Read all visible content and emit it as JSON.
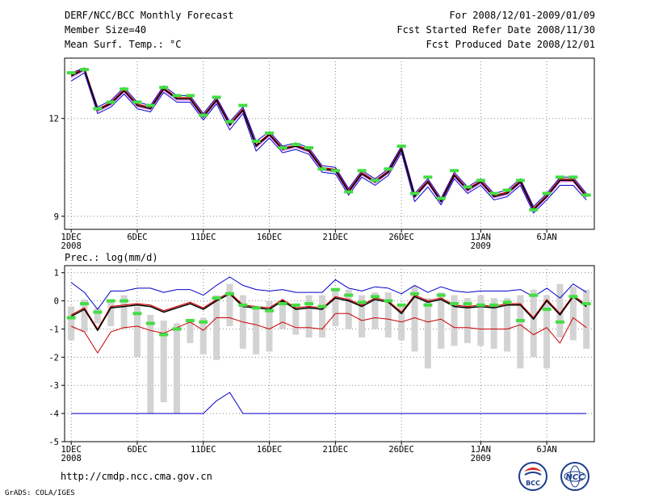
{
  "header": {
    "title": "DERF/NCC/BCC Monthly Forecast",
    "member_size": "Member Size=40",
    "variable": "Mean Surf. Temp.: °C",
    "period": "For 2008/12/01-2009/01/09",
    "refer_date": "Fcst Started Refer Date 2008/11/30",
    "produced_date": "Fcst Produced Date 2008/12/01"
  },
  "lower_title": "Prec.: log(mm/d)",
  "footer": {
    "url": "http://cmdp.ncc.cma.gov.cn",
    "credit": "GrADS: COLA/IGES",
    "logo1_text": "BCC",
    "logo2_text": "NCC"
  },
  "colors": {
    "mean": "#000000",
    "upper": "#0000cc",
    "lower": "#cc0000",
    "green": "#44dd44",
    "ensemble": "#ff66ff",
    "bar": "#d3d3d3"
  },
  "chart_data": [
    {
      "type": "line",
      "title": "Mean Surf. Temp.: °C",
      "x": [
        1,
        2,
        3,
        4,
        5,
        6,
        7,
        8,
        9,
        10,
        11,
        12,
        13,
        14,
        15,
        16,
        17,
        18,
        19,
        20,
        21,
        22,
        23,
        24,
        25,
        26,
        27,
        28,
        29,
        30,
        31,
        32,
        33,
        34,
        35,
        36,
        37,
        38,
        39,
        40
      ],
      "x_ticks": [
        {
          "x": 1,
          "label": "1DEC",
          "sub": "2008"
        },
        {
          "x": 6,
          "label": "6DEC"
        },
        {
          "x": 11,
          "label": "11DEC"
        },
        {
          "x": 16,
          "label": "16DEC"
        },
        {
          "x": 21,
          "label": "21DEC"
        },
        {
          "x": 26,
          "label": "26DEC"
        },
        {
          "x": 32,
          "label": "1JAN",
          "sub": "2009"
        },
        {
          "x": 37,
          "label": "6JAN"
        }
      ],
      "y_ticks": [
        9,
        12
      ],
      "ylim": [
        8.6,
        13.85
      ],
      "series": [
        {
          "name": "mean",
          "values": [
            13.3,
            13.5,
            12.25,
            12.45,
            12.85,
            12.4,
            12.3,
            12.9,
            12.6,
            12.6,
            12.05,
            12.55,
            11.8,
            12.25,
            11.15,
            11.5,
            11.05,
            11.15,
            11.0,
            10.45,
            10.4,
            9.75,
            10.3,
            10.05,
            10.35,
            11.05,
            9.6,
            10.05,
            9.45,
            10.25,
            9.8,
            10.05,
            9.6,
            9.7,
            10.05,
            9.2,
            9.6,
            10.1,
            10.1,
            9.6
          ]
        },
        {
          "name": "upper",
          "values": [
            13.4,
            13.55,
            12.35,
            12.55,
            12.95,
            12.5,
            12.4,
            13.0,
            12.7,
            12.7,
            12.15,
            12.65,
            11.9,
            12.35,
            11.3,
            11.6,
            11.15,
            11.25,
            11.1,
            10.55,
            10.5,
            9.85,
            10.4,
            10.15,
            10.45,
            11.15,
            9.7,
            10.15,
            9.55,
            10.35,
            9.9,
            10.15,
            9.7,
            9.8,
            10.15,
            9.3,
            9.7,
            10.2,
            10.2,
            9.7
          ]
        },
        {
          "name": "lower",
          "values": [
            13.15,
            13.4,
            12.15,
            12.35,
            12.75,
            12.3,
            12.2,
            12.8,
            12.5,
            12.5,
            11.95,
            12.45,
            11.65,
            12.15,
            11.0,
            11.4,
            10.95,
            11.05,
            10.9,
            10.35,
            10.3,
            9.65,
            10.2,
            9.95,
            10.25,
            10.95,
            9.45,
            9.9,
            9.35,
            10.15,
            9.7,
            9.95,
            9.5,
            9.6,
            9.95,
            9.1,
            9.5,
            9.95,
            9.95,
            9.5
          ]
        },
        {
          "name": "obs",
          "values": [
            13.4,
            13.5,
            12.3,
            12.5,
            12.9,
            12.5,
            12.4,
            12.95,
            12.7,
            12.7,
            12.1,
            12.65,
            11.9,
            12.4,
            11.3,
            11.55,
            11.1,
            11.2,
            11.1,
            10.45,
            10.4,
            9.75,
            10.4,
            10.1,
            10.45,
            11.15,
            9.7,
            10.2,
            9.55,
            10.4,
            9.9,
            10.1,
            9.7,
            9.8,
            10.1,
            9.2,
            9.7,
            10.2,
            10.2,
            9.65
          ]
        }
      ]
    },
    {
      "type": "bar",
      "title": "Prec.: log(mm/d)",
      "x": [
        1,
        2,
        3,
        4,
        5,
        6,
        7,
        8,
        9,
        10,
        11,
        12,
        13,
        14,
        15,
        16,
        17,
        18,
        19,
        20,
        21,
        22,
        23,
        24,
        25,
        26,
        27,
        28,
        29,
        30,
        31,
        32,
        33,
        34,
        35,
        36,
        37,
        38,
        39,
        40
      ],
      "x_ticks": [
        {
          "x": 1,
          "label": "1DEC",
          "sub": "2008"
        },
        {
          "x": 6,
          "label": "6DEC"
        },
        {
          "x": 11,
          "label": "11DEC"
        },
        {
          "x": 16,
          "label": "16DEC"
        },
        {
          "x": 21,
          "label": "21DEC"
        },
        {
          "x": 26,
          "label": "26DEC"
        },
        {
          "x": 32,
          "label": "1JAN",
          "sub": "2009"
        },
        {
          "x": 37,
          "label": "6JAN"
        }
      ],
      "y_ticks": [
        1,
        0,
        -1,
        -2,
        -3,
        -4,
        -5
      ],
      "ylim": [
        -5,
        1.25
      ],
      "ranges": [
        [
          -1.4,
          -0.2
        ],
        [
          -1.1,
          0.05
        ],
        [
          -0.8,
          -0.25
        ],
        [
          -0.9,
          -0.05
        ],
        [
          -1.0,
          0.2
        ],
        [
          -2.0,
          -0.2
        ],
        [
          -4.0,
          -0.5
        ],
        [
          -3.6,
          -0.7
        ],
        [
          -4.0,
          -0.8
        ],
        [
          -1.5,
          -0.7
        ],
        [
          -1.9,
          -0.6
        ],
        [
          -2.1,
          0.2
        ],
        [
          -0.9,
          0.6
        ],
        [
          -1.7,
          0.2
        ],
        [
          -1.9,
          -0.2
        ],
        [
          -1.8,
          0.0
        ],
        [
          -1.0,
          -0.1
        ],
        [
          -1.2,
          -0.1
        ],
        [
          -1.3,
          0.2
        ],
        [
          -1.3,
          0.2
        ],
        [
          -0.9,
          0.4
        ],
        [
          -1.0,
          0.4
        ],
        [
          -1.3,
          0.2
        ],
        [
          -1.0,
          0.3
        ],
        [
          -1.3,
          0.3
        ],
        [
          -1.4,
          -0.2
        ],
        [
          -1.8,
          0.5
        ],
        [
          -2.4,
          0.1
        ],
        [
          -1.7,
          0.3
        ],
        [
          -1.6,
          0.2
        ],
        [
          -1.5,
          0.1
        ],
        [
          -1.6,
          0.2
        ],
        [
          -1.7,
          0.1
        ],
        [
          -1.8,
          0.1
        ],
        [
          -2.4,
          0.2
        ],
        [
          -2.0,
          0.4
        ],
        [
          -2.4,
          0.2
        ],
        [
          -1.3,
          0.6
        ],
        [
          -1.4,
          0.5
        ],
        [
          -1.7,
          0.4
        ]
      ],
      "series": [
        {
          "name": "mean",
          "values": [
            -0.55,
            -0.3,
            -1.05,
            -0.25,
            -0.2,
            -0.15,
            -0.2,
            -0.4,
            -0.25,
            -0.1,
            -0.3,
            0.0,
            0.25,
            -0.2,
            -0.25,
            -0.3,
            0.0,
            -0.3,
            -0.25,
            -0.3,
            0.1,
            0.0,
            -0.2,
            0.05,
            -0.05,
            -0.45,
            0.15,
            -0.05,
            0.05,
            -0.2,
            -0.25,
            -0.2,
            -0.25,
            -0.15,
            -0.15,
            -0.65,
            0.0,
            -0.5,
            0.15,
            -0.2
          ]
        },
        {
          "name": "upper",
          "values": [
            0.65,
            0.3,
            -0.3,
            0.35,
            0.35,
            0.45,
            0.45,
            0.3,
            0.4,
            0.4,
            0.2,
            0.55,
            0.85,
            0.55,
            0.4,
            0.35,
            0.4,
            0.3,
            0.3,
            0.3,
            0.75,
            0.45,
            0.35,
            0.5,
            0.45,
            0.25,
            0.55,
            0.3,
            0.5,
            0.35,
            0.3,
            0.35,
            0.35,
            0.35,
            0.4,
            0.15,
            0.45,
            0.1,
            0.6,
            0.3
          ]
        },
        {
          "name": "lower",
          "values": [
            -0.9,
            -1.1,
            -1.85,
            -1.1,
            -0.95,
            -0.9,
            -1.05,
            -1.15,
            -0.95,
            -0.75,
            -1.05,
            -0.6,
            -0.6,
            -0.75,
            -0.85,
            -1.0,
            -0.75,
            -0.95,
            -0.95,
            -1.0,
            -0.45,
            -0.45,
            -0.7,
            -0.6,
            -0.65,
            -0.75,
            -0.6,
            -0.75,
            -0.65,
            -0.95,
            -0.95,
            -1.0,
            -1.0,
            -1.0,
            -0.85,
            -1.2,
            -0.95,
            -1.5,
            -0.6,
            -0.95
          ]
        },
        {
          "name": "min",
          "values": [
            -4,
            -4,
            -4,
            -4,
            -4,
            -4,
            -4,
            -4,
            -4,
            -4,
            -4,
            -3.55,
            -3.25,
            -4,
            -4,
            -4,
            -4,
            -4,
            -4,
            -4,
            -4,
            -4,
            -4,
            -4,
            -4,
            -4,
            -4,
            -4,
            -4,
            -4,
            -4,
            -4,
            -4,
            -4,
            -4,
            -4,
            -4,
            -4,
            -4,
            -4
          ]
        },
        {
          "name": "obs",
          "values": [
            -0.6,
            -0.1,
            -0.4,
            0.0,
            0.0,
            -0.45,
            -0.8,
            -1.2,
            -1.0,
            -0.7,
            -0.75,
            0.1,
            0.25,
            -0.15,
            -0.25,
            -0.35,
            -0.1,
            -0.15,
            -0.1,
            -0.2,
            0.4,
            0.2,
            -0.05,
            0.15,
            0.0,
            -0.15,
            0.25,
            -0.15,
            0.2,
            -0.1,
            -0.1,
            -0.15,
            -0.15,
            -0.05,
            -0.7,
            0.2,
            -0.3,
            -0.75,
            0.15,
            -0.1
          ]
        }
      ]
    }
  ]
}
